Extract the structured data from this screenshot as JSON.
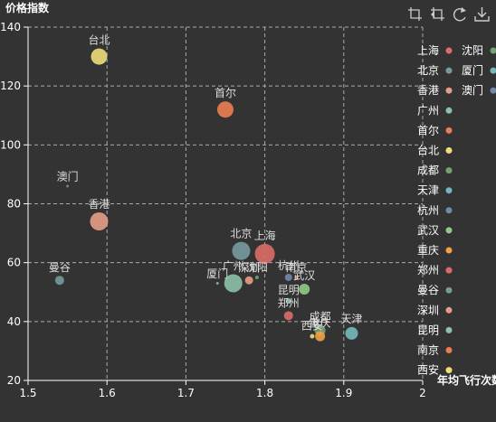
{
  "toolbox": {
    "icons": [
      "zoom-icon",
      "zoom-reset-icon",
      "restore-icon",
      "download-icon"
    ],
    "color": "#cccccc"
  },
  "colors": {
    "background": "#333333",
    "axis": "#ffffff",
    "grid": "#aaaaaa"
  },
  "chart_data": {
    "type": "scatter",
    "xlabel": "年均飞行次数",
    "ylabel": "价格指数",
    "xlim": [
      1.5,
      2
    ],
    "ylim": [
      20,
      140
    ],
    "xticks": [
      "1.5",
      "1.6",
      "1.7",
      "1.8",
      "1.9",
      "2"
    ],
    "yticks": [
      "20",
      "40",
      "60",
      "80",
      "100",
      "120",
      "140"
    ],
    "grid": true,
    "legend_position": "right",
    "legend": [
      {
        "name": "上海",
        "color": "#dd6b66"
      },
      {
        "name": "北京",
        "color": "#759aa0"
      },
      {
        "name": "香港",
        "color": "#e69d87"
      },
      {
        "name": "广州",
        "color": "#8dc1a9"
      },
      {
        "name": "首尔",
        "color": "#ea7e53"
      },
      {
        "name": "台北",
        "color": "#eedd78"
      },
      {
        "name": "成都",
        "color": "#73a373"
      },
      {
        "name": "天津",
        "color": "#73b9bc"
      },
      {
        "name": "杭州",
        "color": "#7289ab"
      },
      {
        "name": "武汉",
        "color": "#91ca8c"
      },
      {
        "name": "重庆",
        "color": "#f49f42"
      },
      {
        "name": "郑州",
        "color": "#dd6b66"
      },
      {
        "name": "曼谷",
        "color": "#759aa0"
      },
      {
        "name": "深圳",
        "color": "#e69d87"
      },
      {
        "name": "昆明",
        "color": "#8dc1a9"
      },
      {
        "name": "南京",
        "color": "#ea7e53"
      },
      {
        "name": "西安",
        "color": "#eedd78"
      },
      {
        "name": "沈阳",
        "color": "#73a373"
      },
      {
        "name": "厦门",
        "color": "#73b9bc"
      },
      {
        "name": "澳门",
        "color": "#7289ab"
      }
    ],
    "points": [
      {
        "name": "台北",
        "x": 1.59,
        "y": 130,
        "size": 9,
        "color": "#eedd78"
      },
      {
        "name": "首尔",
        "x": 1.75,
        "y": 112,
        "size": 9,
        "color": "#ea7e53"
      },
      {
        "name": "澳门",
        "x": 1.55,
        "y": 86,
        "size": 1.5,
        "color": "#7289ab"
      },
      {
        "name": "香港",
        "x": 1.59,
        "y": 74,
        "size": 10,
        "color": "#e69d87"
      },
      {
        "name": "北京",
        "x": 1.77,
        "y": 64,
        "size": 10,
        "color": "#759aa0"
      },
      {
        "name": "上海",
        "x": 1.8,
        "y": 63,
        "size": 11,
        "color": "#dd6b66"
      },
      {
        "name": "曼谷",
        "x": 1.54,
        "y": 54,
        "size": 5,
        "color": "#759aa0"
      },
      {
        "name": "广州",
        "x": 1.76,
        "y": 53,
        "size": 10,
        "color": "#8dc1a9"
      },
      {
        "name": "深圳",
        "x": 1.78,
        "y": 54,
        "size": 4.5,
        "color": "#e69d87"
      },
      {
        "name": "厦门",
        "x": 1.74,
        "y": 53,
        "size": 1.5,
        "color": "#73b9bc"
      },
      {
        "name": "沈阳",
        "x": 1.79,
        "y": 55,
        "size": 2,
        "color": "#73a373"
      },
      {
        "name": "杭州",
        "x": 1.83,
        "y": 55,
        "size": 4,
        "color": "#7289ab"
      },
      {
        "name": "南京",
        "x": 1.84,
        "y": 55,
        "size": 2,
        "color": "#ea7e53"
      },
      {
        "name": "武汉",
        "x": 1.85,
        "y": 51,
        "size": 6,
        "color": "#91ca8c"
      },
      {
        "name": "昆明",
        "x": 1.83,
        "y": 47,
        "size": 3,
        "color": "#8dc1a9"
      },
      {
        "name": "郑州",
        "x": 1.83,
        "y": 42,
        "size": 5,
        "color": "#dd6b66"
      },
      {
        "name": "成都",
        "x": 1.87,
        "y": 37,
        "size": 6,
        "color": "#73a373"
      },
      {
        "name": "重庆",
        "x": 1.87,
        "y": 35,
        "size": 5.5,
        "color": "#f49f42"
      },
      {
        "name": "西安",
        "x": 1.86,
        "y": 35,
        "size": 2.5,
        "color": "#eedd78"
      },
      {
        "name": "天津",
        "x": 1.91,
        "y": 36,
        "size": 7,
        "color": "#73b9bc"
      }
    ]
  }
}
